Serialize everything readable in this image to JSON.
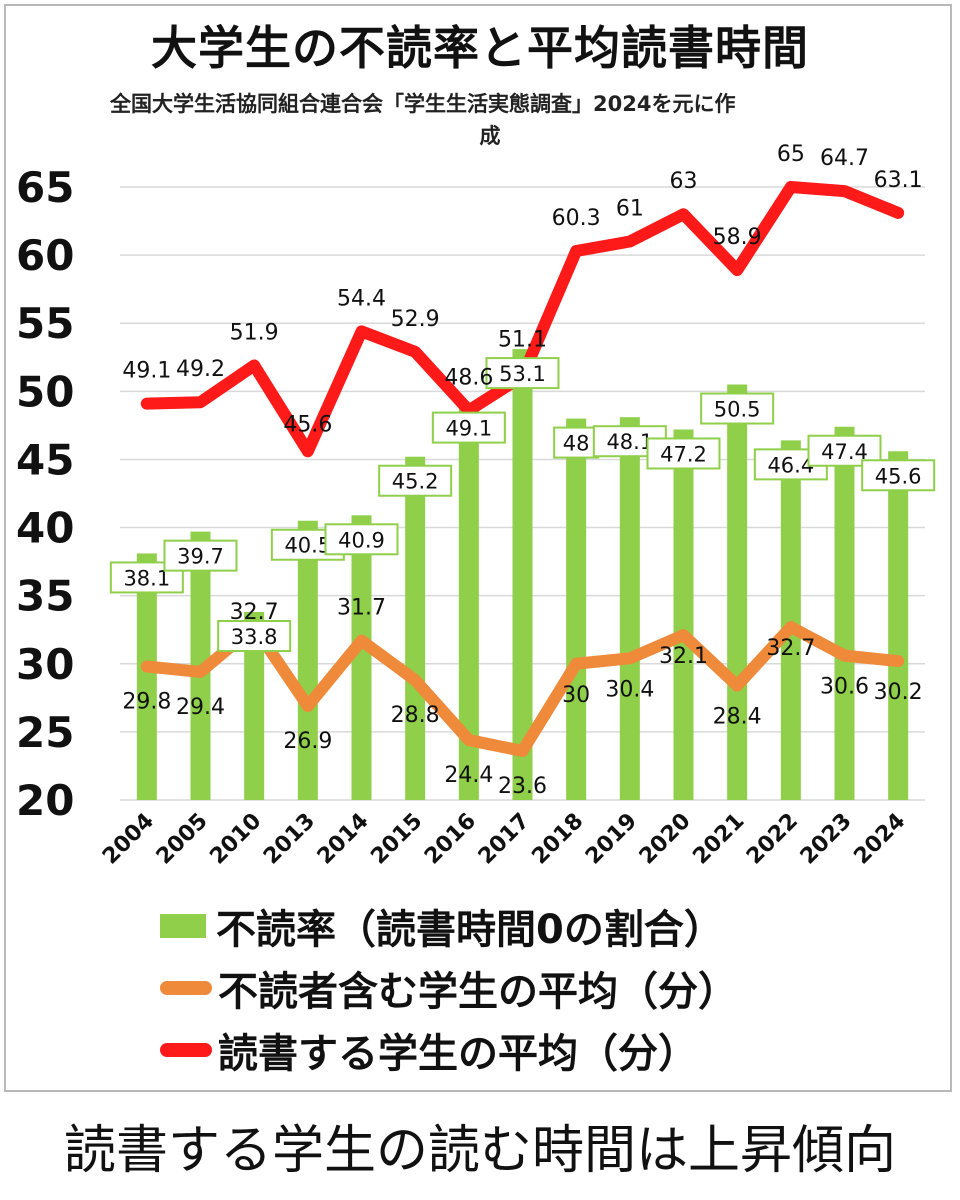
{
  "title": "大学生の不読率と平均読書時間",
  "subtitle_line1": "全国大学生活協同組合連合会「学生生活実態調査」2024を元に作",
  "subtitle_line2": "成",
  "caption": "読書する学生の読む時間は上昇傾向",
  "chart_data": {
    "type": "bar",
    "categories": [
      "2004",
      "2005",
      "2010",
      "2013",
      "2014",
      "2015",
      "2016",
      "2017",
      "2018",
      "2019",
      "2020",
      "2021",
      "2022",
      "2023",
      "2024"
    ],
    "ylim": [
      20,
      65
    ],
    "yticks": [
      "20",
      "25",
      "30",
      "35",
      "40",
      "45",
      "50",
      "55",
      "60",
      "65"
    ],
    "grid": true,
    "series": [
      {
        "name": "不読率（読書時間0の割合）",
        "kind": "bar",
        "color": "#8fcf4a",
        "values": [
          38.1,
          39.7,
          33.8,
          40.5,
          40.9,
          45.2,
          49.1,
          53.1,
          48,
          48.1,
          47.2,
          50.5,
          46.4,
          47.4,
          45.6
        ],
        "labels": [
          "38.1",
          "39.7",
          "33.8",
          "40.5",
          "40.9",
          "45.2",
          "49.1",
          "53.1",
          "48",
          "48.1",
          "47.2",
          "50.5",
          "46.4",
          "47.4",
          "45.6"
        ]
      },
      {
        "name": "不読者含む学生の平均（分）",
        "kind": "line",
        "color": "#ee8a3a",
        "values": [
          29.8,
          29.4,
          32.7,
          26.9,
          31.7,
          28.8,
          24.4,
          23.6,
          30,
          30.4,
          32.1,
          28.4,
          32.7,
          30.6,
          30.2
        ],
        "labels": [
          "29.8",
          "29.4",
          "32.7",
          "26.9",
          "31.7",
          "28.8",
          "24.4",
          "23.6",
          "30",
          "30.4",
          "32.1",
          "28.4",
          "32.7",
          "30.6",
          "30.2"
        ]
      },
      {
        "name": "読書する学生の平均（分）",
        "kind": "line",
        "color": "#ff1a1a",
        "values": [
          49.1,
          49.2,
          51.9,
          45.6,
          54.4,
          52.9,
          48.6,
          51.1,
          60.3,
          61,
          63,
          58.9,
          65,
          64.7,
          63.1
        ],
        "labels": [
          "49.1",
          "49.2",
          "51.9",
          "45.6",
          "54.4",
          "52.9",
          "48.6",
          "51.1",
          "60.3",
          "61",
          "63",
          "58.9",
          "65",
          "64.7",
          "63.1"
        ]
      }
    ]
  },
  "legend": [
    {
      "label": "不読率（読書時間0の割合）",
      "color": "#8fcf4a"
    },
    {
      "label": "不読者含む学生の平均（分）",
      "color": "#ee8a3a"
    },
    {
      "label": "読書する学生の平均（分）",
      "color": "#ff1a1a"
    }
  ]
}
